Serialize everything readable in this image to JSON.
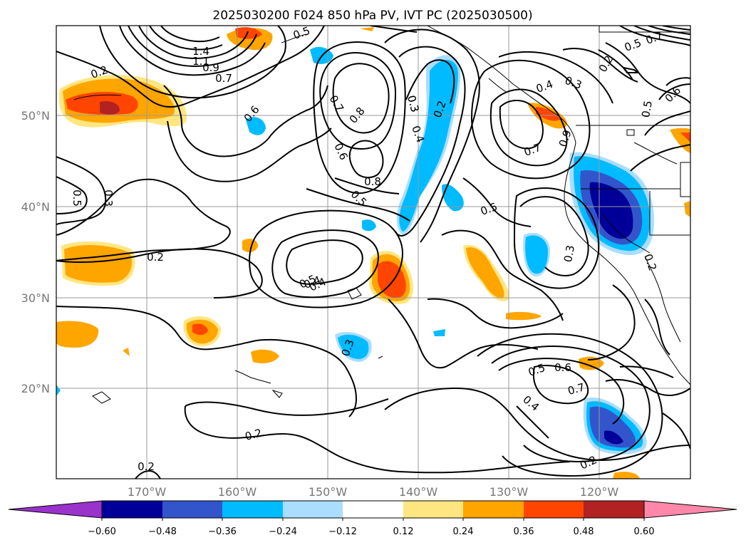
{
  "title": "2025030200 F024 850 hPa PV, IVT PC (2025030500)",
  "map": {
    "lat_ticks": [
      "50°N",
      "40°N",
      "30°N",
      "20°N"
    ],
    "lon_ticks": [
      "170°W",
      "160°W",
      "150°W",
      "140°W",
      "130°W",
      "120°W"
    ],
    "extent": {
      "lon_min": -180,
      "lon_max": -110,
      "lat_min": 10,
      "lat_max": 60
    }
  },
  "colorbar": {
    "ticks": [
      "−0.60",
      "−0.48",
      "−0.36",
      "−0.24",
      "−0.12",
      "0.12",
      "0.24",
      "0.36",
      "0.48",
      "0.60"
    ],
    "colors": [
      "#9933cc",
      "#000099",
      "#3355cc",
      "#00bbff",
      "#aaddff",
      "#ffffff",
      "#ffe680",
      "#ffa500",
      "#ff4500",
      "#b22222",
      "#ff88aa"
    ]
  },
  "contour_labels": [
    "1.4",
    "1.1",
    "0.9",
    "0.7",
    "0.2",
    "0.6",
    "0.5",
    "0.4",
    "0.3",
    "0.7",
    "0.8",
    "0.6",
    "0.8",
    "0.5",
    "0.3",
    "0.4",
    "0.2",
    "0.4",
    "0.3",
    "0.5",
    "0.6",
    "0.2",
    "0.5",
    "0.7",
    "0.9",
    "0.7",
    "0.5",
    "0.5",
    "0.3",
    "0.2",
    "0.2",
    "0.5",
    "0.4",
    "0.3",
    "0.3",
    "0.5",
    "0.6",
    "0.7",
    "0.4",
    "0.2",
    "0.2",
    "0.2"
  ]
}
